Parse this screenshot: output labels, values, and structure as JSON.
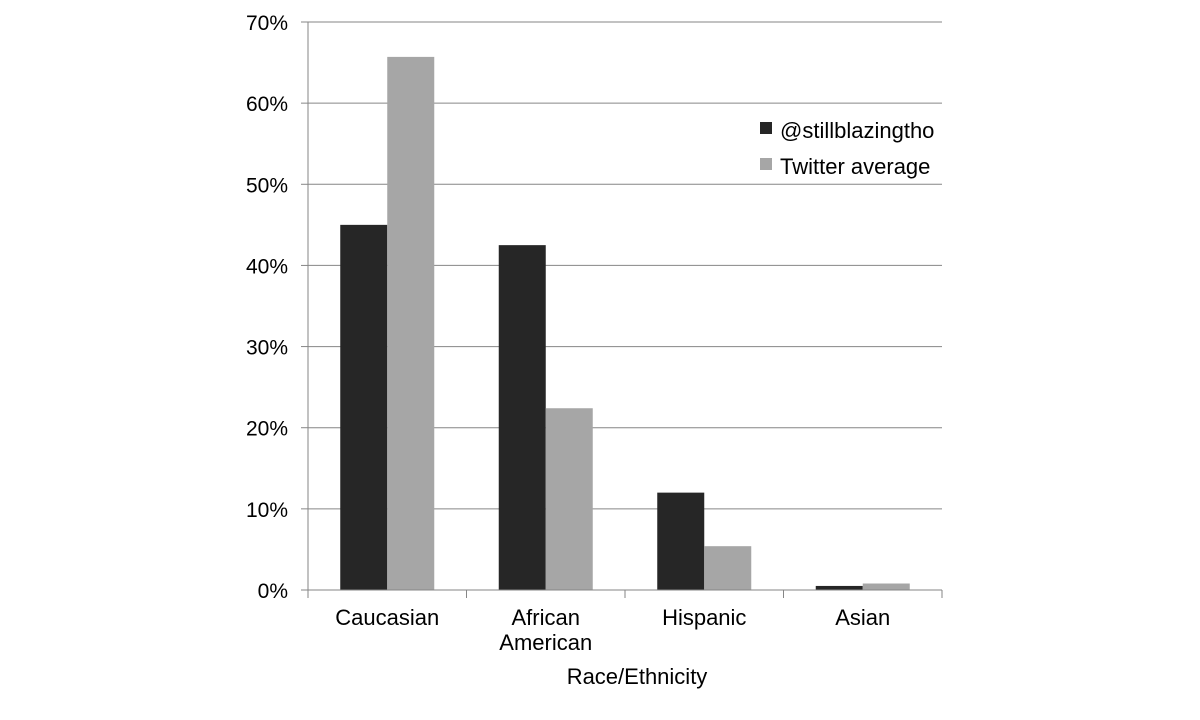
{
  "chart_data": {
    "type": "bar",
    "title": "",
    "xlabel": "Race/Ethnicity",
    "ylabel": "",
    "categories": [
      [
        "Caucasian"
      ],
      [
        "African",
        "American"
      ],
      [
        "Hispanic"
      ],
      [
        "Asian"
      ]
    ],
    "series": [
      {
        "name": "@stillblazingtho",
        "color": "#262626",
        "values": [
          45,
          42.5,
          12,
          0.5
        ]
      },
      {
        "name": "Twitter average",
        "color": "#a6a6a6",
        "values": [
          65.7,
          22.4,
          5.4,
          0.8
        ]
      }
    ],
    "ylim": [
      0,
      70
    ],
    "yticks": [
      0,
      10,
      20,
      30,
      40,
      50,
      60,
      70
    ],
    "ytick_labels": [
      "0%",
      "10%",
      "20%",
      "30%",
      "40%",
      "50%",
      "60%",
      "70%"
    ],
    "grid": true,
    "legend_position": "top-right",
    "gridline_color": "#868686"
  }
}
